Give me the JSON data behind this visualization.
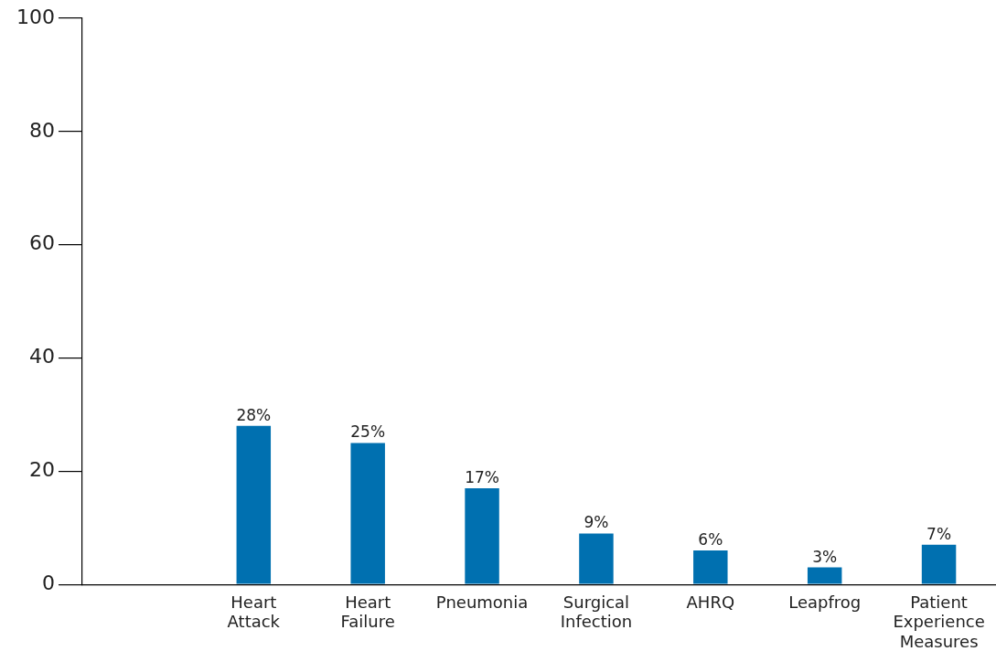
{
  "chart_data": {
    "type": "bar",
    "categories": [
      null,
      "Heart Attack",
      "Heart Failure",
      "Pneumonia",
      "Surgical Infection",
      "AHRQ",
      "Leapfrog",
      "Patient Experience Measures"
    ],
    "values": [
      null,
      28,
      25,
      17,
      9,
      6,
      3,
      7
    ],
    "value_labels": [
      null,
      "28%",
      "25%",
      "17%",
      "9%",
      "6%",
      "3%",
      "7%"
    ],
    "color": "#0070b0",
    "ylim": [
      0,
      100
    ],
    "yticks": [
      0,
      20,
      40,
      60,
      80,
      100
    ],
    "grid": false,
    "legend": false
  }
}
